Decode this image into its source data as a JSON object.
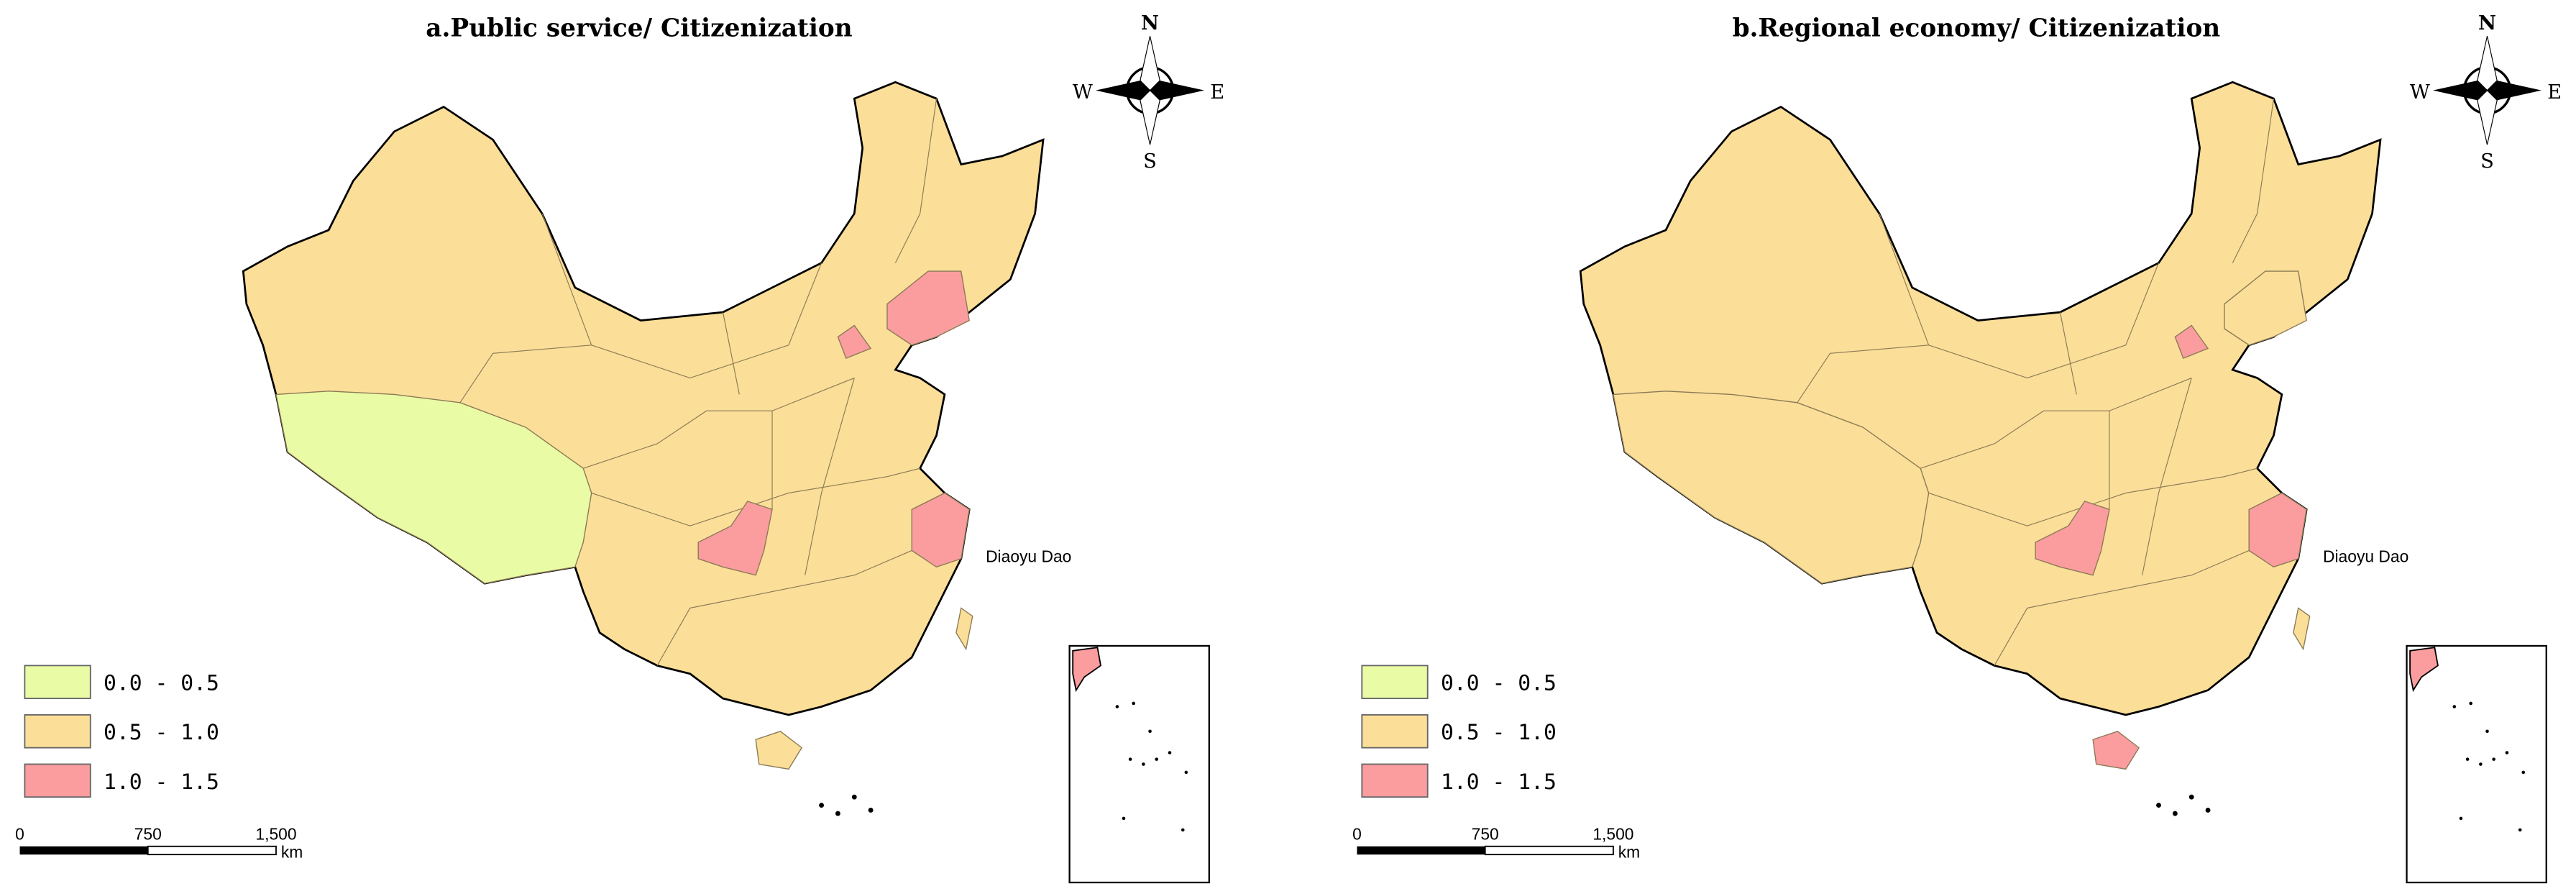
{
  "maps": [
    {
      "title": "a.Public service/ Citizenization",
      "compass": {
        "n": "N",
        "e": "E",
        "s": "S",
        "w": "W"
      },
      "annotation": "Diaoyu Dao",
      "legend": [
        {
          "label": "0.0 - 0.5",
          "color": "#e9fba4"
        },
        {
          "label": "0.5 - 1.0",
          "color": "#fbde98"
        },
        {
          "label": "1.0 - 1.5",
          "color": "#fb9c9f"
        }
      ],
      "scale": {
        "ticks": [
          0,
          750,
          {
            "value": 1500,
            "label": "1,500"
          }
        ],
        "unit": "km"
      }
    },
    {
      "title": "b.Regional economy/ Citizenization",
      "compass": {
        "n": "N",
        "e": "E",
        "s": "S",
        "w": "W"
      },
      "annotation": "Diaoyu Dao",
      "legend": [
        {
          "label": "0.0 - 0.5",
          "color": "#e9fba4"
        },
        {
          "label": "0.5 - 1.0",
          "color": "#fbde98"
        },
        {
          "label": "1.0 - 1.5",
          "color": "#fb9c9f"
        }
      ],
      "scale": {
        "ticks": [
          0,
          750,
          {
            "value": 1500,
            "label": "1,500"
          }
        ],
        "unit": "km"
      }
    }
  ]
}
